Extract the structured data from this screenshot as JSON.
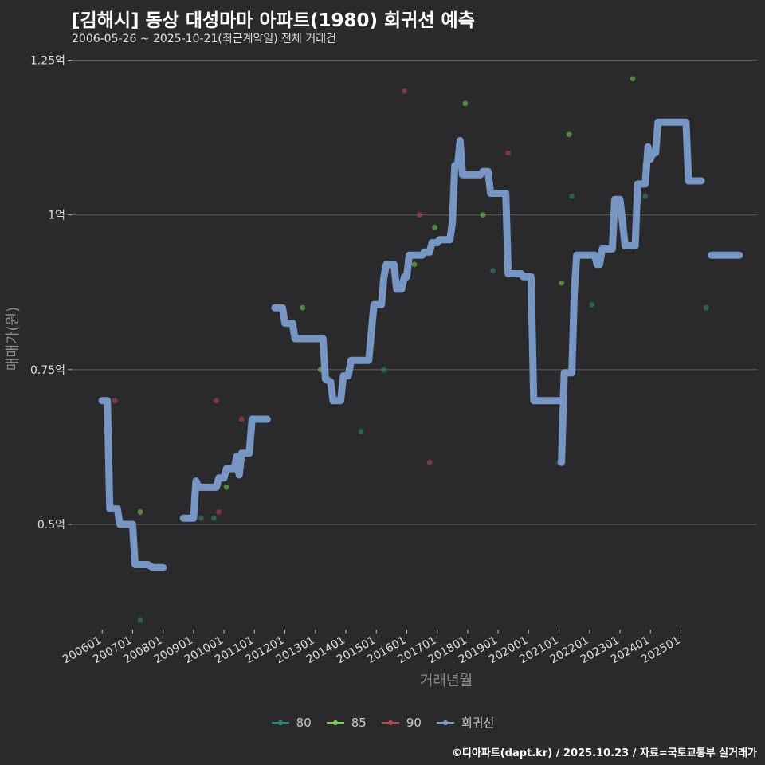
{
  "header": {
    "title": "[김해시] 동상 대성마마 아파트(1980) 회귀선 예측",
    "subtitle": "2006-05-26 ~ 2025-10-21(최근계약일) 전체 거래건"
  },
  "footer": {
    "credit": "©디아파트(dapt.kr) / 2025.10.23 / 자료=국토교통부 실거래가"
  },
  "colors": {
    "background": "#2a2a2d",
    "grid": "#5a5a5a",
    "s80": "#2a8a7a",
    "s85": "#7ccf55",
    "s90": "#c0454f",
    "regression": "#7b9ccc"
  },
  "chart_data": {
    "type": "scatter+line",
    "title": "[김해시] 동상 대성마마 아파트(1980) 회귀선 예측",
    "xlabel": "거래년월",
    "ylabel": "매매가(원)",
    "ylim": [
      0.33,
      1.27
    ],
    "yticks": [
      0.5,
      0.75,
      1.0,
      1.25
    ],
    "ytick_labels": [
      "0.5억",
      "0.75억",
      "1억",
      "1.25억"
    ],
    "xtick_labels": [
      "200601",
      "200701",
      "200801",
      "200901",
      "201001",
      "201101",
      "201201",
      "201301",
      "201401",
      "201501",
      "201601",
      "201701",
      "201801",
      "201901",
      "202001",
      "202101",
      "202201",
      "202301",
      "202401",
      "202501"
    ],
    "legend": [
      {
        "key": "80",
        "label": "80",
        "color": "#2a8a7a"
      },
      {
        "key": "85",
        "label": "85",
        "color": "#7ccf55"
      },
      {
        "key": "90",
        "label": "90",
        "color": "#c0454f"
      },
      {
        "key": "reg",
        "label": "회귀선",
        "color": "#7b9ccc"
      }
    ],
    "points": [
      {
        "series": "90",
        "x": 2006.42,
        "y": 0.7
      },
      {
        "series": "85",
        "x": 2007.25,
        "y": 0.52
      },
      {
        "series": "80",
        "x": 2007.25,
        "y": 0.345
      },
      {
        "series": "80",
        "x": 2009.25,
        "y": 0.51
      },
      {
        "series": "80",
        "x": 2009.67,
        "y": 0.51
      },
      {
        "series": "90",
        "x": 2009.75,
        "y": 0.7
      },
      {
        "series": "90",
        "x": 2009.83,
        "y": 0.52
      },
      {
        "series": "85",
        "x": 2010.08,
        "y": 0.56
      },
      {
        "series": "90",
        "x": 2010.58,
        "y": 0.67
      },
      {
        "series": "85",
        "x": 2012.58,
        "y": 0.85
      },
      {
        "series": "85",
        "x": 2013.17,
        "y": 0.75
      },
      {
        "series": "80",
        "x": 2014.5,
        "y": 0.65
      },
      {
        "series": "80",
        "x": 2015.25,
        "y": 0.75
      },
      {
        "series": "90",
        "x": 2015.92,
        "y": 1.2
      },
      {
        "series": "85",
        "x": 2016.25,
        "y": 0.92
      },
      {
        "series": "90",
        "x": 2016.42,
        "y": 1.0
      },
      {
        "series": "90",
        "x": 2016.75,
        "y": 0.6
      },
      {
        "series": "85",
        "x": 2016.92,
        "y": 0.98
      },
      {
        "series": "85",
        "x": 2017.92,
        "y": 1.18
      },
      {
        "series": "85",
        "x": 2018.5,
        "y": 1.0
      },
      {
        "series": "80",
        "x": 2018.83,
        "y": 0.91
      },
      {
        "series": "90",
        "x": 2019.33,
        "y": 1.1
      },
      {
        "series": "80",
        "x": 2021.0,
        "y": 0.6
      },
      {
        "series": "85",
        "x": 2021.08,
        "y": 0.89
      },
      {
        "series": "85",
        "x": 2021.33,
        "y": 1.13
      },
      {
        "series": "80",
        "x": 2021.42,
        "y": 1.03
      },
      {
        "series": "80",
        "x": 2022.08,
        "y": 0.855
      },
      {
        "series": "85",
        "x": 2023.42,
        "y": 1.22
      },
      {
        "series": "80",
        "x": 2023.83,
        "y": 1.03
      },
      {
        "series": "85",
        "x": 2023.83,
        "y": 1.08
      },
      {
        "series": "80",
        "x": 2025.83,
        "y": 0.85
      }
    ],
    "regression_segments": [
      [
        [
          2006.0,
          0.7
        ],
        [
          2006.17,
          0.7
        ],
        [
          2006.25,
          0.525
        ],
        [
          2006.5,
          0.525
        ],
        [
          2006.58,
          0.5
        ],
        [
          2007.0,
          0.5
        ],
        [
          2007.08,
          0.435
        ],
        [
          2007.5,
          0.435
        ],
        [
          2007.67,
          0.43
        ],
        [
          2008.0,
          0.43
        ]
      ],
      [
        [
          2008.67,
          0.51
        ],
        [
          2009.0,
          0.51
        ],
        [
          2009.08,
          0.57
        ],
        [
          2009.17,
          0.56
        ],
        [
          2009.75,
          0.56
        ],
        [
          2009.83,
          0.575
        ],
        [
          2010.0,
          0.575
        ],
        [
          2010.08,
          0.59
        ],
        [
          2010.33,
          0.59
        ],
        [
          2010.42,
          0.61
        ],
        [
          2010.5,
          0.58
        ],
        [
          2010.58,
          0.615
        ],
        [
          2010.83,
          0.615
        ],
        [
          2010.92,
          0.67
        ],
        [
          2011.42,
          0.67
        ]
      ],
      [
        [
          2011.67,
          0.85
        ],
        [
          2011.92,
          0.85
        ],
        [
          2012.0,
          0.825
        ],
        [
          2012.25,
          0.825
        ],
        [
          2012.33,
          0.8
        ],
        [
          2013.25,
          0.8
        ],
        [
          2013.33,
          0.735
        ],
        [
          2013.5,
          0.73
        ],
        [
          2013.58,
          0.7
        ],
        [
          2013.83,
          0.7
        ],
        [
          2013.92,
          0.74
        ],
        [
          2014.08,
          0.74
        ],
        [
          2014.17,
          0.765
        ],
        [
          2014.75,
          0.765
        ],
        [
          2014.92,
          0.855
        ],
        [
          2015.17,
          0.855
        ],
        [
          2015.25,
          0.9
        ],
        [
          2015.33,
          0.92
        ],
        [
          2015.58,
          0.92
        ],
        [
          2015.67,
          0.88
        ],
        [
          2015.83,
          0.88
        ],
        [
          2015.92,
          0.9
        ],
        [
          2016.0,
          0.9
        ],
        [
          2016.08,
          0.935
        ],
        [
          2016.5,
          0.935
        ],
        [
          2016.58,
          0.94
        ],
        [
          2016.75,
          0.94
        ],
        [
          2016.83,
          0.955
        ],
        [
          2017.0,
          0.955
        ],
        [
          2017.08,
          0.96
        ],
        [
          2017.42,
          0.96
        ],
        [
          2017.5,
          0.99
        ],
        [
          2017.58,
          1.08
        ],
        [
          2017.67,
          1.08
        ],
        [
          2017.75,
          1.12
        ],
        [
          2017.83,
          1.065
        ],
        [
          2018.42,
          1.065
        ],
        [
          2018.5,
          1.07
        ],
        [
          2018.67,
          1.07
        ],
        [
          2018.75,
          1.035
        ],
        [
          2019.25,
          1.035
        ],
        [
          2019.33,
          0.905
        ],
        [
          2019.75,
          0.905
        ],
        [
          2019.83,
          0.9
        ],
        [
          2020.08,
          0.9
        ],
        [
          2020.17,
          0.7
        ],
        [
          2021.0,
          0.7
        ]
      ],
      [
        [
          2021.08,
          0.6
        ],
        [
          2021.17,
          0.745
        ],
        [
          2021.42,
          0.745
        ],
        [
          2021.5,
          0.875
        ],
        [
          2021.58,
          0.935
        ],
        [
          2022.17,
          0.935
        ],
        [
          2022.25,
          0.92
        ],
        [
          2022.33,
          0.92
        ],
        [
          2022.42,
          0.945
        ],
        [
          2022.75,
          0.945
        ],
        [
          2022.83,
          1.025
        ],
        [
          2023.0,
          1.025
        ],
        [
          2023.17,
          0.95
        ],
        [
          2023.5,
          0.95
        ],
        [
          2023.58,
          1.05
        ],
        [
          2023.83,
          1.05
        ],
        [
          2023.92,
          1.11
        ],
        [
          2024.0,
          1.09
        ],
        [
          2024.08,
          1.1
        ],
        [
          2024.17,
          1.1
        ],
        [
          2024.25,
          1.15
        ],
        [
          2025.17,
          1.15
        ],
        [
          2025.25,
          1.055
        ],
        [
          2025.67,
          1.055
        ]
      ],
      [
        [
          2026.0,
          0.935
        ],
        [
          2026.92,
          0.935
        ]
      ]
    ]
  }
}
